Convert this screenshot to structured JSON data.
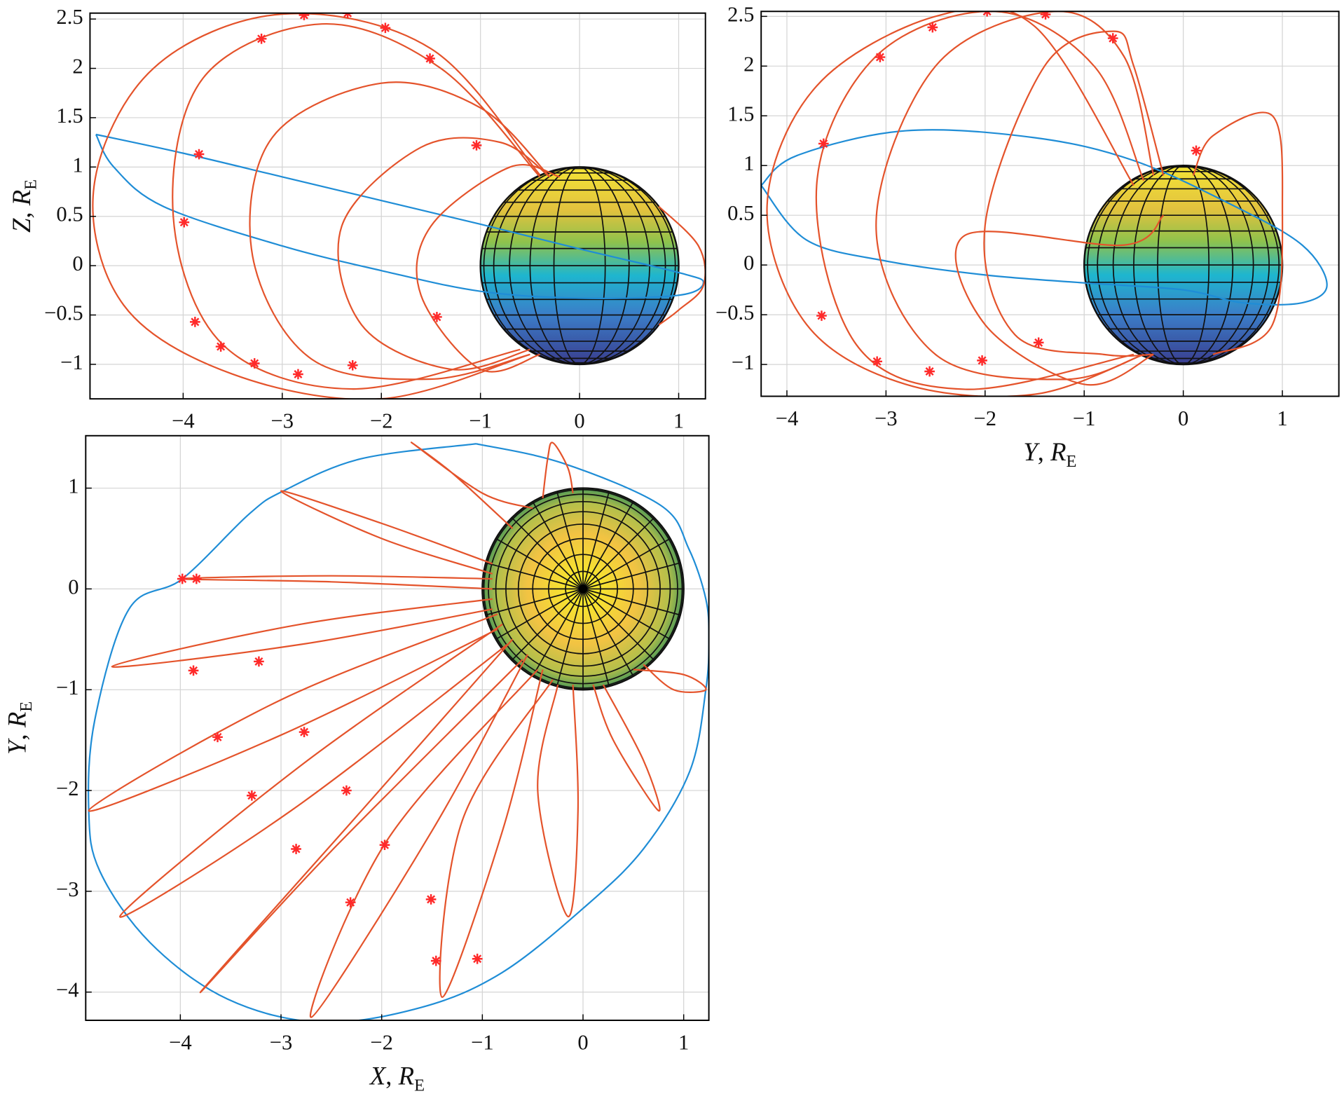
{
  "chart_data": [
    {
      "type": "line",
      "grid": true,
      "xlim": [
        -4.94,
        1.27
      ],
      "ylim": [
        -1.35,
        2.56
      ],
      "xticks": [
        {
          "value": -4,
          "label": "−4"
        },
        {
          "value": -3,
          "label": "−3"
        },
        {
          "value": -2,
          "label": "−2"
        },
        {
          "value": -1,
          "label": "−1"
        },
        0,
        1
      ],
      "yticks": [
        {
          "value": -1,
          "label": "−1"
        },
        {
          "value": -0.5,
          "label": "−0.5"
        },
        0,
        0.5,
        1,
        1.5,
        2,
        2.5
      ],
      "ylabel": {
        "var": "Z",
        "sep": ", ",
        "unit": "R",
        "sub": "E"
      },
      "body": {
        "center": [
          0,
          0
        ],
        "radius": 1,
        "view": "side"
      },
      "series": [
        {
          "type": "line",
          "color": "#1f8dd6",
          "x": [
            -4.88,
            -4.0,
            -3.0,
            -2.0,
            -1.0,
            0.0,
            1.0,
            1.25,
            1.0,
            0.0,
            -1.0,
            -2.0,
            -3.0,
            -4.2,
            -4.7,
            -4.88
          ],
          "values": [
            1.33,
            1.14,
            0.9,
            0.66,
            0.42,
            0.17,
            -0.07,
            -0.17,
            -0.3,
            -0.33,
            -0.26,
            -0.05,
            0.2,
            0.6,
            1.0,
            1.33
          ]
        },
        {
          "type": "line",
          "color": "#e4532b",
          "x": [
            -0.4,
            -1.5,
            -3.0,
            -4.3,
            -4.9,
            -4.6,
            -3.5,
            -2.0,
            -0.5
          ],
          "values": [
            0.92,
            2.2,
            2.55,
            2.0,
            0.8,
            -0.4,
            -1.1,
            -1.35,
            -0.9
          ]
        },
        {
          "type": "line",
          "color": "#e4532b",
          "x": [
            -0.4,
            -1.4,
            -2.6,
            -3.8,
            -4.1,
            -3.6,
            -2.3,
            -0.6
          ],
          "values": [
            0.9,
            2.0,
            2.45,
            1.9,
            0.5,
            -0.8,
            -1.25,
            -0.85
          ]
        },
        {
          "type": "line",
          "color": "#e4532b",
          "x": [
            -0.3,
            -1.0,
            -2.0,
            -3.1,
            -3.3,
            -2.7,
            -1.5,
            -0.5
          ],
          "values": [
            0.9,
            1.6,
            1.85,
            1.3,
            0.1,
            -0.95,
            -1.15,
            -0.9
          ]
        },
        {
          "type": "line",
          "color": "#e4532b",
          "x": [
            -0.3,
            -0.8,
            -1.6,
            -2.4,
            -2.2,
            -1.3,
            -0.5
          ],
          "values": [
            0.9,
            1.25,
            1.2,
            0.4,
            -0.6,
            -1.05,
            -0.85
          ]
        },
        {
          "type": "line",
          "color": "#e4532b",
          "x": [
            -0.2,
            -0.7,
            -1.5,
            -1.6,
            -1.0,
            -0.4
          ],
          "values": [
            0.9,
            1.0,
            0.4,
            -0.3,
            -1.05,
            -0.9
          ]
        },
        {
          "type": "line",
          "color": "#e4532b",
          "x": [
            0.8,
            1.2,
            1.25,
            1.0,
            0.8
          ],
          "values": [
            0.6,
            0.2,
            -0.2,
            -0.45,
            -0.6
          ]
        },
        {
          "type": "scatter",
          "color": "#ff2a2a",
          "x": [
            -2.78,
            -2.34,
            -3.21,
            -1.96,
            -1.51,
            -3.84,
            -1.04,
            -3.99,
            -3.88,
            -3.62,
            -3.28,
            -2.84,
            -2.29,
            -1.44
          ],
          "values": [
            2.54,
            2.56,
            2.3,
            2.41,
            2.1,
            1.13,
            1.22,
            0.44,
            -0.57,
            -0.82,
            -0.99,
            -1.1,
            -1.01,
            -0.52
          ]
        }
      ]
    },
    {
      "type": "line",
      "grid": true,
      "xlim": [
        -4.26,
        1.57
      ],
      "ylim": [
        -1.32,
        2.55
      ],
      "xticks": [
        {
          "value": -4,
          "label": "−4"
        },
        {
          "value": -3,
          "label": "−3"
        },
        {
          "value": -2,
          "label": "−2"
        },
        {
          "value": -1,
          "label": "−1"
        },
        0,
        1
      ],
      "yticks": [
        {
          "value": -1,
          "label": "−1"
        },
        {
          "value": -0.5,
          "label": "−0.5"
        },
        0,
        0.5,
        1,
        1.5,
        2,
        2.5
      ],
      "xlabel": {
        "var": "Y",
        "sep": ", ",
        "unit": "R",
        "sub": "E"
      },
      "body": {
        "center": [
          0,
          0
        ],
        "radius": 1,
        "view": "side"
      },
      "series": [
        {
          "type": "line",
          "color": "#1f8dd6",
          "x": [
            -4.26,
            -3.9,
            -2.8,
            -1.5,
            -0.5,
            0.5,
            1.2,
            1.45,
            1.2,
            0.6,
            0.0,
            -1.0,
            -2.0,
            -3.0,
            -3.8,
            -4.26
          ],
          "values": [
            0.8,
            1.1,
            1.35,
            1.28,
            1.05,
            0.6,
            0.2,
            -0.2,
            -0.38,
            -0.38,
            -0.25,
            -0.18,
            -0.1,
            0.04,
            0.25,
            0.8
          ]
        },
        {
          "type": "line",
          "color": "#e4532b",
          "x": [
            -0.5,
            -1.5,
            -2.5,
            -3.7,
            -4.2,
            -3.8,
            -2.8,
            -1.5,
            -0.4
          ],
          "values": [
            0.8,
            2.4,
            2.5,
            1.8,
            0.6,
            -0.6,
            -1.2,
            -1.3,
            -0.9
          ]
        },
        {
          "type": "line",
          "color": "#e4532b",
          "x": [
            -0.4,
            -0.9,
            -1.9,
            -3.1,
            -3.7,
            -3.3,
            -2.2,
            -0.5
          ],
          "values": [
            0.85,
            2.0,
            2.55,
            2.1,
            0.8,
            -0.8,
            -1.25,
            -0.9
          ]
        },
        {
          "type": "line",
          "color": "#e4532b",
          "x": [
            -0.3,
            -0.6,
            -1.3,
            -2.5,
            -3.1,
            -2.5,
            -1.2,
            -0.4
          ],
          "values": [
            0.9,
            2.1,
            2.55,
            2.0,
            0.4,
            -0.9,
            -1.15,
            -0.9
          ]
        },
        {
          "type": "line",
          "color": "#e4532b",
          "x": [
            -0.2,
            -0.5,
            -0.7,
            -1.4,
            -2.0,
            -1.7,
            -0.8,
            -0.3
          ],
          "values": [
            0.9,
            2.0,
            2.35,
            2.0,
            0.4,
            -0.7,
            -0.9,
            -0.9
          ]
        },
        {
          "type": "line",
          "color": "#e4532b",
          "x": [
            0.1,
            0.3,
            0.9,
            1.0,
            0.9,
            0.3
          ],
          "values": [
            0.9,
            1.3,
            1.5,
            0.6,
            -0.6,
            -0.9
          ]
        },
        {
          "type": "line",
          "color": "#e4532b",
          "x": [
            -0.2,
            -0.6,
            -2.2,
            -2.0,
            -1.0,
            -0.3
          ],
          "values": [
            0.5,
            0.2,
            0.3,
            -0.6,
            -1.2,
            -0.9
          ]
        },
        {
          "type": "scatter",
          "color": "#ff2a2a",
          "x": [
            -1.98,
            -1.39,
            -2.53,
            -0.71,
            -3.06,
            -3.63,
            0.13,
            -3.65,
            -3.09,
            -2.56,
            -2.03,
            -1.46
          ],
          "values": [
            2.55,
            2.52,
            2.39,
            2.28,
            2.09,
            1.22,
            1.15,
            -0.51,
            -0.97,
            -1.07,
            -0.96,
            -0.78
          ]
        }
      ]
    },
    {
      "type": "line",
      "grid": true,
      "xlim": [
        -4.94,
        1.25
      ],
      "ylim": [
        -4.28,
        1.52
      ],
      "xticks": [
        {
          "value": -4,
          "label": "−4"
        },
        {
          "value": -3,
          "label": "−3"
        },
        {
          "value": -2,
          "label": "−2"
        },
        {
          "value": -1,
          "label": "−1"
        },
        0,
        1
      ],
      "yticks": [
        {
          "value": -4,
          "label": "−4"
        },
        {
          "value": -3,
          "label": "−3"
        },
        {
          "value": -2,
          "label": "−2"
        },
        {
          "value": -1,
          "label": "−1"
        },
        0,
        1
      ],
      "xlabel": {
        "var": "X",
        "sep": ", ",
        "unit": "R",
        "sub": "E"
      },
      "ylabel": {
        "var": "Y",
        "sep": ", ",
        "unit": "R",
        "sub": "E"
      },
      "body": {
        "center": [
          0,
          0
        ],
        "radius": 1,
        "view": "pole"
      },
      "series": [
        {
          "type": "line",
          "color": "#1f8dd6",
          "x": [
            -1.06,
            -0.21,
            0.77,
            1.05,
            1.22,
            1.25,
            1.22,
            1.06,
            0.6,
            0.0,
            -0.81,
            -1.6,
            -2.6,
            -3.53,
            -4.3,
            -4.8,
            -4.91,
            -4.85,
            -4.51,
            -3.98,
            -3.32,
            -2.98,
            -2.21,
            -1.06
          ],
          "values": [
            1.44,
            1.25,
            0.83,
            0.4,
            -0.1,
            -0.5,
            -1.0,
            -1.81,
            -2.58,
            -3.17,
            -3.81,
            -4.15,
            -4.3,
            -4.07,
            -3.51,
            -2.8,
            -2.2,
            -1.3,
            -0.2,
            0.1,
            0.74,
            0.97,
            1.29,
            1.44
          ]
        },
        {
          "type": "line",
          "color": "#e4532b",
          "x": [
            -0.9,
            -2.5,
            -3.98,
            -2.5,
            -0.9
          ],
          "values": [
            0.1,
            0.13,
            0.1,
            0.07,
            0.0
          ]
        },
        {
          "type": "line",
          "color": "#e4532b",
          "x": [
            -0.9,
            -2.8,
            -4.68,
            -2.8,
            -0.9
          ],
          "values": [
            -0.1,
            -0.35,
            -0.77,
            -0.55,
            -0.2
          ]
        },
        {
          "type": "line",
          "color": "#e4532b",
          "x": [
            -0.85,
            -3.0,
            -4.91,
            -3.0,
            -0.85
          ],
          "values": [
            -0.25,
            -1.1,
            -2.2,
            -1.45,
            -0.4
          ]
        },
        {
          "type": "line",
          "color": "#e4532b",
          "x": [
            -0.8,
            -2.8,
            -4.6,
            -2.9,
            -0.75
          ],
          "values": [
            -0.35,
            -1.75,
            -3.25,
            -2.2,
            -0.55
          ]
        },
        {
          "type": "line",
          "color": "#e4532b",
          "x": [
            -0.7,
            -2.2,
            -3.8,
            -2.5,
            -0.6
          ],
          "values": [
            -0.5,
            -2.2,
            -4.0,
            -2.6,
            -0.7
          ]
        },
        {
          "type": "line",
          "color": "#e4532b",
          "x": [
            -0.55,
            -1.5,
            -2.7,
            -1.95,
            -0.45
          ],
          "values": [
            -0.65,
            -2.4,
            -4.25,
            -2.5,
            -0.8
          ]
        },
        {
          "type": "line",
          "color": "#e4532b",
          "x": [
            -0.4,
            -0.8,
            -1.4,
            -1.2,
            -0.3
          ],
          "values": [
            -0.8,
            -2.4,
            -4.05,
            -2.3,
            -0.9
          ]
        },
        {
          "type": "line",
          "color": "#e4532b",
          "x": [
            -0.1,
            -0.05,
            -0.15,
            -0.45,
            -0.25
          ],
          "values": [
            -0.95,
            -2.2,
            -3.25,
            -2.0,
            -0.95
          ]
        },
        {
          "type": "line",
          "color": "#e4532b",
          "x": [
            0.2,
            0.6,
            0.75,
            0.3,
            0.1
          ],
          "values": [
            -0.95,
            -1.7,
            -2.2,
            -1.5,
            -0.95
          ]
        },
        {
          "type": "line",
          "color": "#e4532b",
          "x": [
            0.5,
            1.0,
            1.22,
            0.9,
            0.6
          ],
          "values": [
            -0.8,
            -0.85,
            -1.0,
            -1.0,
            -0.75
          ]
        },
        {
          "type": "line",
          "color": "#e4532b",
          "x": [
            -0.9,
            -2.0,
            -3.0,
            -2.0,
            -0.9
          ],
          "values": [
            0.25,
            0.65,
            0.97,
            0.5,
            0.15
          ]
        },
        {
          "type": "line",
          "color": "#e4532b",
          "x": [
            -0.7,
            -1.3,
            -1.7,
            -1.0,
            -0.5
          ],
          "values": [
            0.6,
            1.15,
            1.45,
            0.95,
            0.8
          ]
        },
        {
          "type": "line",
          "color": "#e4532b",
          "x": [
            -0.4,
            -0.35,
            -0.3,
            -0.15,
            -0.1
          ],
          "values": [
            0.9,
            1.3,
            1.45,
            1.2,
            0.95
          ]
        },
        {
          "type": "scatter",
          "color": "#ff2a2a",
          "x": [
            -3.98,
            -3.84,
            -3.87,
            -3.22,
            -3.63,
            -2.77,
            -3.29,
            -2.35,
            -2.85,
            -1.97,
            -2.31,
            -1.51,
            -1.46,
            -1.05
          ],
          "values": [
            0.1,
            0.1,
            -0.81,
            -0.72,
            -1.47,
            -1.42,
            -2.05,
            -2.0,
            -2.58,
            -2.54,
            -3.11,
            -3.08,
            -3.69,
            -3.67
          ]
        }
      ]
    }
  ]
}
